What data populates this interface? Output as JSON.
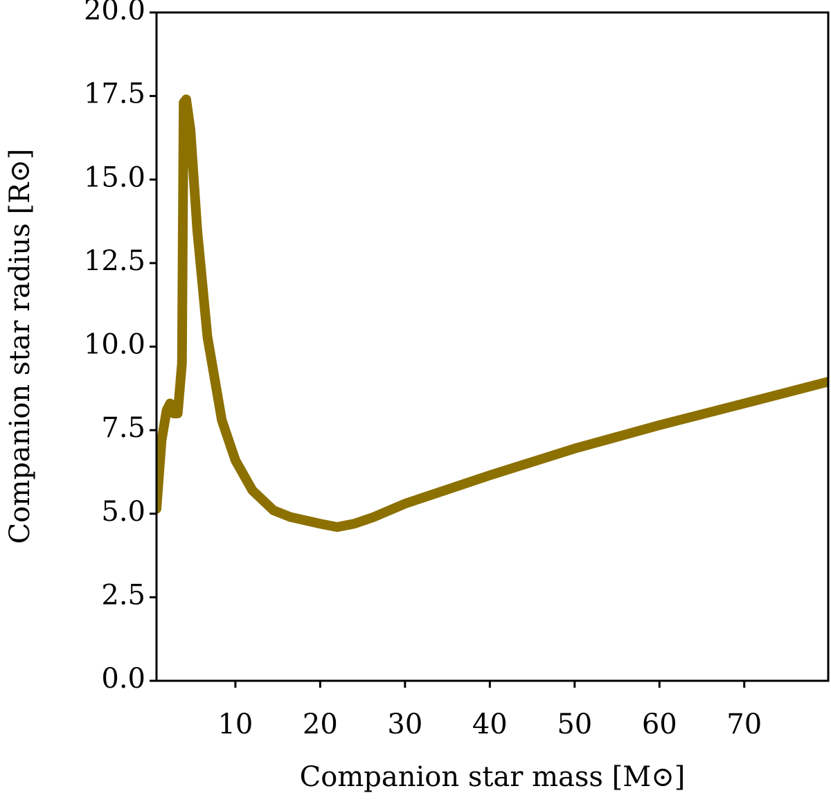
{
  "chart_data": {
    "type": "line",
    "xlabel": "Companion star mass [M⊙]",
    "ylabel": "Companion star radius [R⊙]",
    "x": [
      0.7,
      1.3,
      1.9,
      2.3,
      2.7,
      3.2,
      3.7,
      3.9,
      4.2,
      4.7,
      5.5,
      6.7,
      8.4,
      10,
      12,
      14.5,
      16.5,
      20,
      22,
      24,
      26.3,
      30,
      40,
      50,
      60,
      70,
      79.9
    ],
    "values": [
      5.15,
      7.2,
      8.1,
      8.3,
      8.0,
      8.0,
      9.5,
      17.3,
      17.4,
      16.5,
      13.5,
      10.3,
      7.8,
      6.6,
      5.7,
      5.1,
      4.9,
      4.7,
      4.6,
      4.7,
      4.9,
      5.3,
      6.15,
      6.95,
      7.65,
      8.3,
      8.95
    ],
    "color": "#8c7000",
    "xlim": [
      0.7,
      79.9
    ],
    "xticks": [
      10,
      20,
      30,
      40,
      50,
      60,
      70
    ],
    "ylim": [
      0,
      20
    ],
    "yticks": [
      {
        "value": 0,
        "label": "0.0"
      },
      2.5,
      {
        "value": 5,
        "label": "5.0"
      },
      7.5,
      {
        "value": 10,
        "label": "10.0"
      },
      12.5,
      {
        "value": 15,
        "label": "15.0"
      },
      17.5,
      {
        "value": 20,
        "label": "20.0"
      }
    ]
  }
}
